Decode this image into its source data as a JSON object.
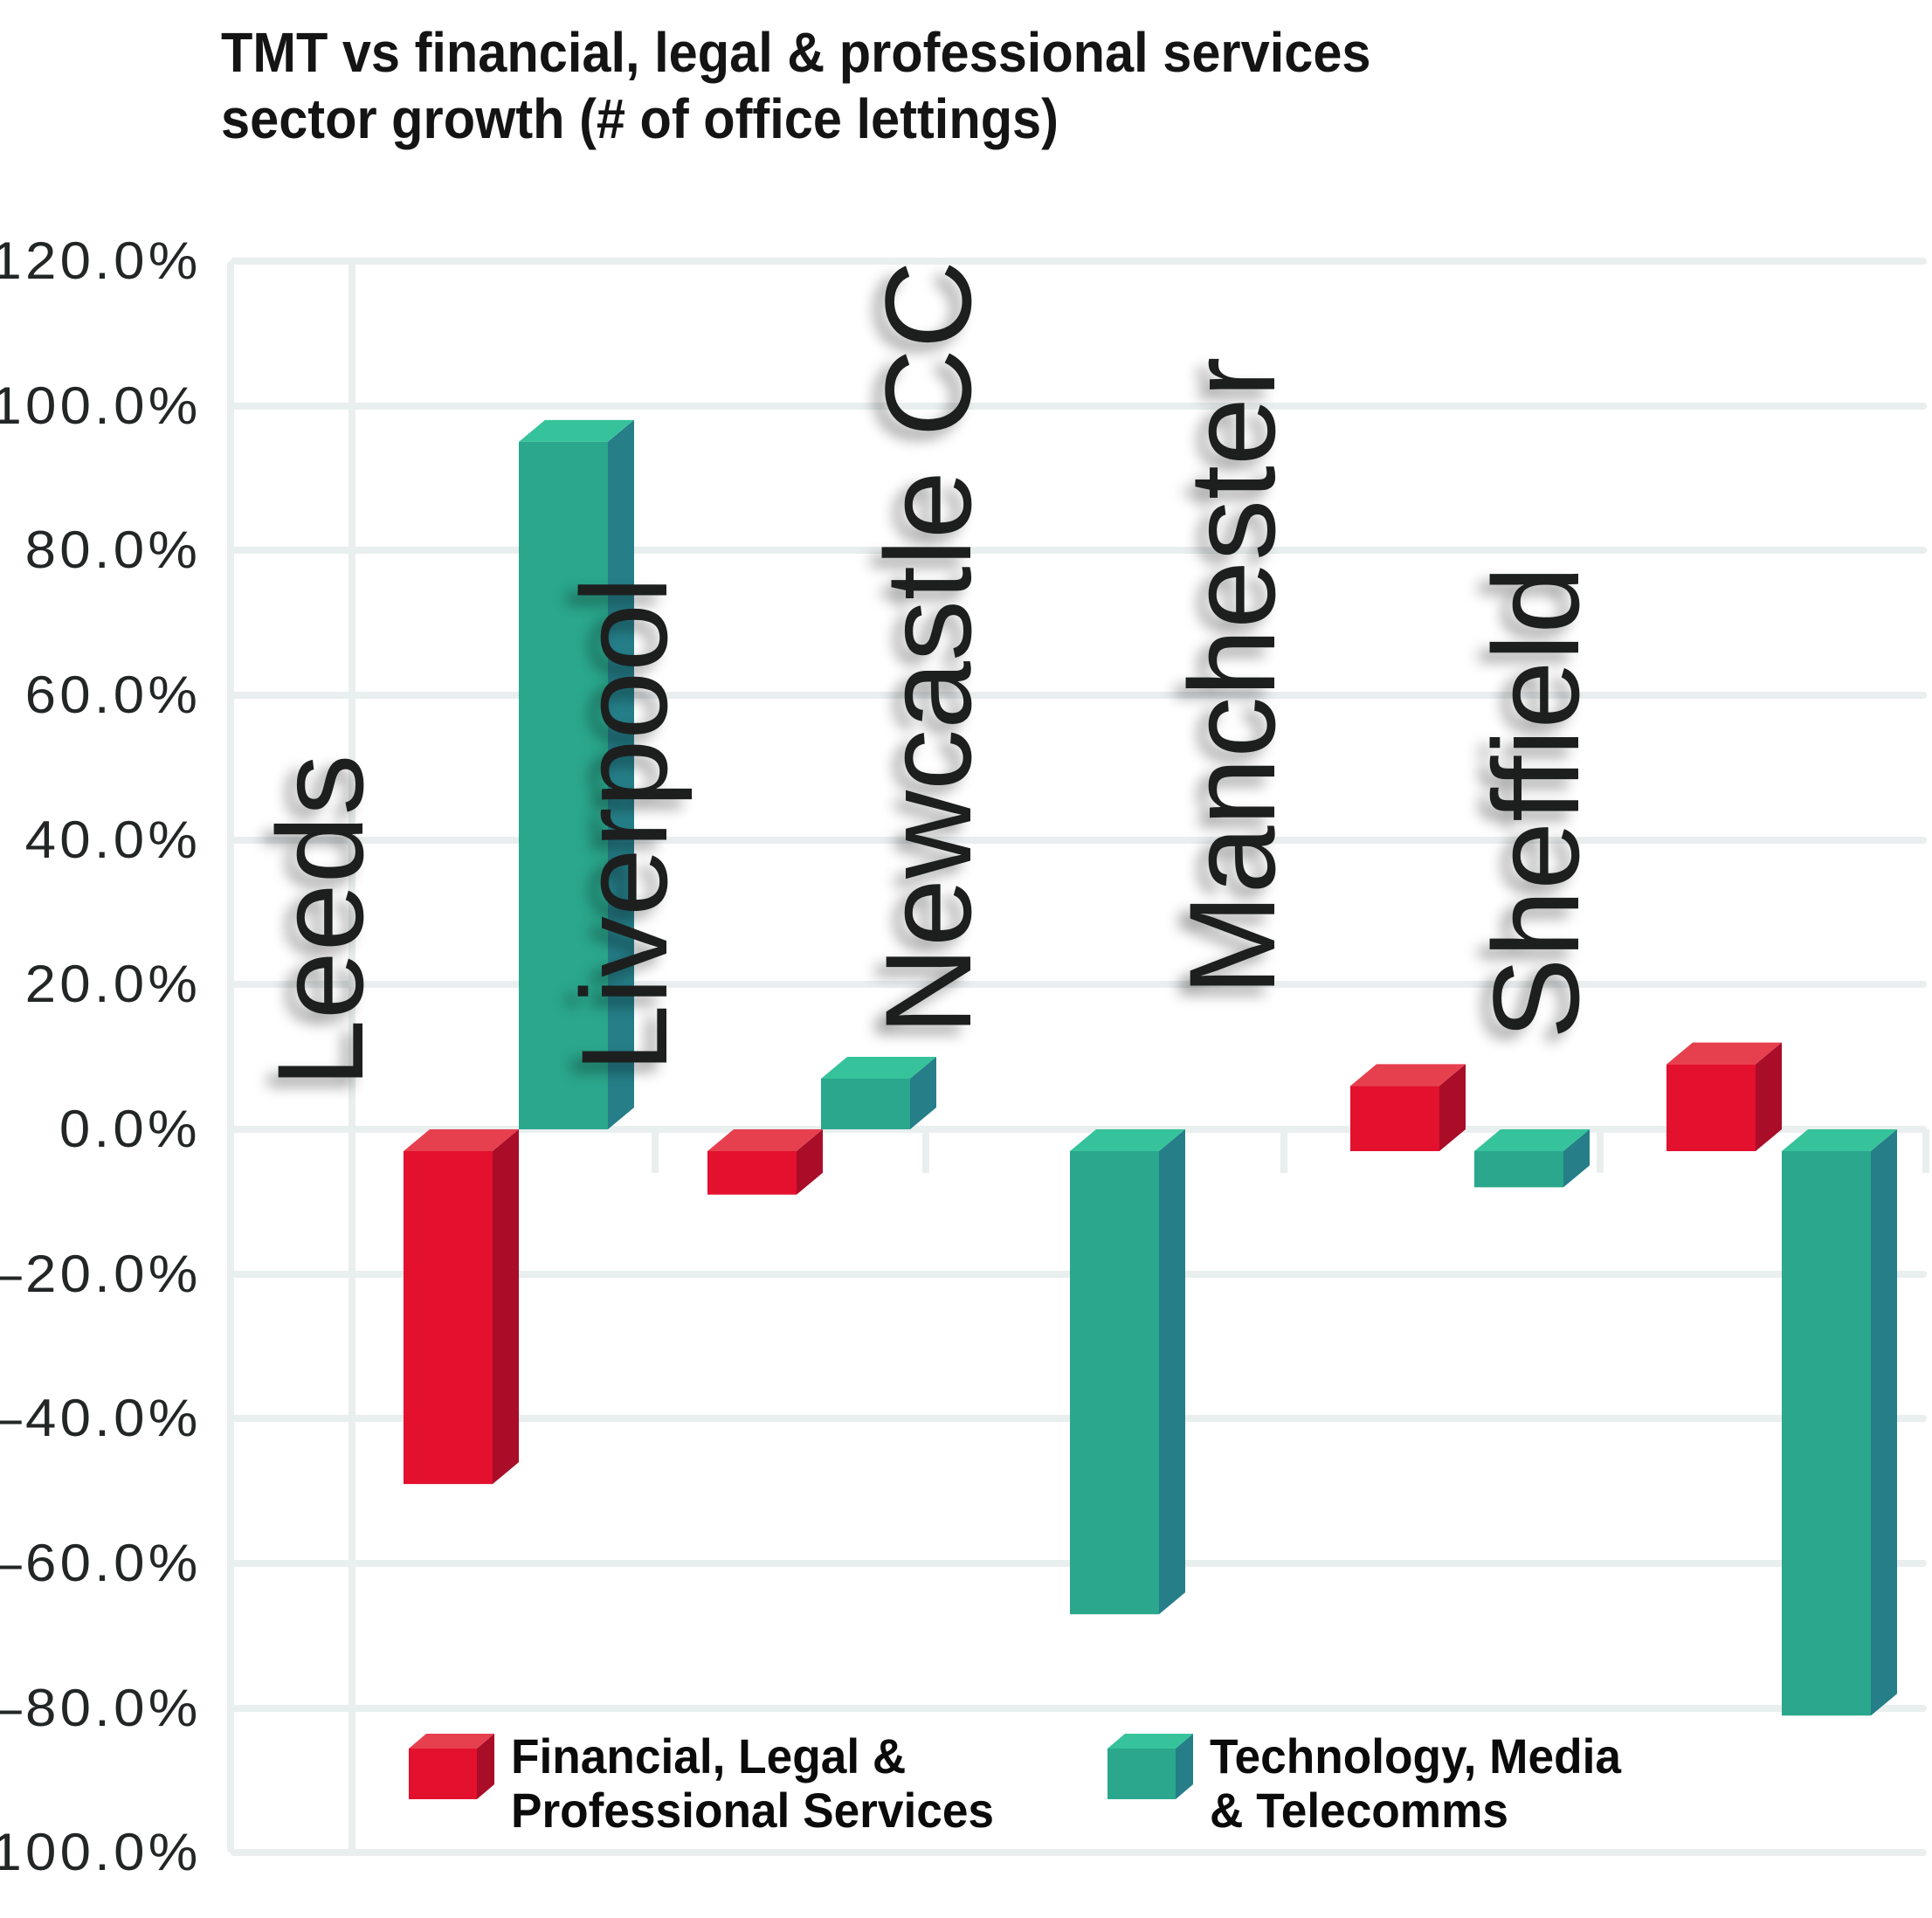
{
  "title": {
    "line1": "TMT vs financial, legal & professional services",
    "line2": "sector growth (# of office lettings)"
  },
  "y_axis": {
    "tick_labels": [
      "120.0%",
      "100.0%",
      "80.0%",
      "60.0%",
      "40.0%",
      "20.0%",
      "0.0%",
      "–20.0%",
      "–40.0%",
      "–60.0%",
      "–80.0%",
      "100.0%"
    ]
  },
  "legend": {
    "items": [
      {
        "label_line1": "Financial, Legal &",
        "label_line2": "Professional Services",
        "color": "#e3102e"
      },
      {
        "label_line1": "Technology, Media",
        "label_line2": "& Telecomms",
        "color": "#2aa78c"
      }
    ]
  },
  "chart_data": {
    "type": "bar",
    "style": "3d-oblique",
    "title": "TMT vs financial, legal & professional services sector growth (# of office lettings)",
    "unit": "%",
    "categories": [
      "Leeds",
      "Liverpool",
      "Newcastle CC",
      "Manchester",
      "Sheffield"
    ],
    "series": [
      {
        "name": "Financial, Legal & Professional Services",
        "values": [
          -46,
          -6,
          0,
          9,
          12
        ],
        "colors": {
          "front": "#e3102e",
          "top": "#e6404f",
          "side": "#a90d28"
        }
      },
      {
        "name": "Technology, Media & Telecomms",
        "values": [
          95,
          7,
          -64,
          -5,
          -78
        ],
        "colors": {
          "front": "#2aa78c",
          "top": "#36c39b",
          "side": "#257e88"
        }
      }
    ],
    "ylim": [
      -100,
      120
    ],
    "y_tick_step": 20,
    "grid": true,
    "legend_position": "bottom-inside",
    "colors": {
      "grid": "#e9eeee",
      "background": "#ffffff",
      "text": "#1d1f1f"
    }
  }
}
